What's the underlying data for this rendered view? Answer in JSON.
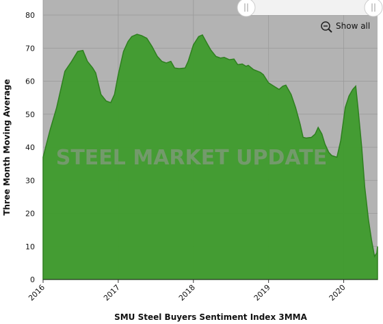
{
  "chart_data": {
    "type": "area",
    "title": "SMU Steel Buyers Sentiment Index 3MMA",
    "y_label": "Three Month Moving Average",
    "watermark": "STEEL MARKET UPDATE",
    "button": "Show all",
    "xlim": [
      2016,
      2020.45
    ],
    "xticks": [
      2016,
      2017,
      2018,
      2019,
      2020
    ],
    "ylim": [
      0,
      80
    ],
    "yticks": [
      0,
      10,
      20,
      30,
      40,
      50,
      60,
      70,
      80
    ],
    "grid": true,
    "series": [
      {
        "color": "#3e9b2c",
        "x": [
          2016.0,
          2016.09,
          2016.18,
          2016.29,
          2016.38,
          2016.46,
          2016.53,
          2016.59,
          2016.66,
          2016.7,
          2016.77,
          2016.84,
          2016.9,
          2016.95,
          2017.0,
          2017.07,
          2017.13,
          2017.18,
          2017.25,
          2017.31,
          2017.38,
          2017.45,
          2017.52,
          2017.58,
          2017.64,
          2017.7,
          2017.75,
          2017.81,
          2017.89,
          2017.93,
          2018.0,
          2018.07,
          2018.12,
          2018.18,
          2018.23,
          2018.3,
          2018.36,
          2018.41,
          2018.48,
          2018.54,
          2018.59,
          2018.65,
          2018.7,
          2018.73,
          2018.8,
          2018.89,
          2018.93,
          2019.0,
          2019.07,
          2019.14,
          2019.19,
          2019.23,
          2019.3,
          2019.36,
          2019.42,
          2019.46,
          2019.5,
          2019.57,
          2019.62,
          2019.66,
          2019.71,
          2019.75,
          2019.8,
          2019.84,
          2019.91,
          2019.96,
          2020.02,
          2020.07,
          2020.12,
          2020.16,
          2020.19,
          2020.24,
          2020.28,
          2020.33,
          2020.37,
          2020.41,
          2020.44,
          2020.45
        ],
        "values": [
          37,
          45,
          52,
          63,
          66,
          69,
          69.3,
          66,
          64,
          62.5,
          56,
          54,
          53.5,
          56,
          62,
          69,
          72,
          73.5,
          74.2,
          73.8,
          73,
          70.5,
          67.5,
          66,
          65.5,
          66,
          64,
          63.8,
          64,
          66,
          71,
          73.5,
          74,
          71.5,
          69.5,
          67.5,
          67,
          67.2,
          66.5,
          66.7,
          65,
          65.2,
          64.5,
          64.8,
          63.5,
          62.7,
          62,
          59.5,
          58.5,
          57.5,
          58.5,
          58.8,
          56,
          52,
          47,
          43,
          42.8,
          43,
          44,
          46,
          44,
          41,
          38.5,
          37.5,
          37,
          42,
          52,
          55.5,
          57.5,
          58.5,
          52,
          40,
          28,
          18,
          12,
          7,
          8,
          10
        ]
      }
    ]
  }
}
